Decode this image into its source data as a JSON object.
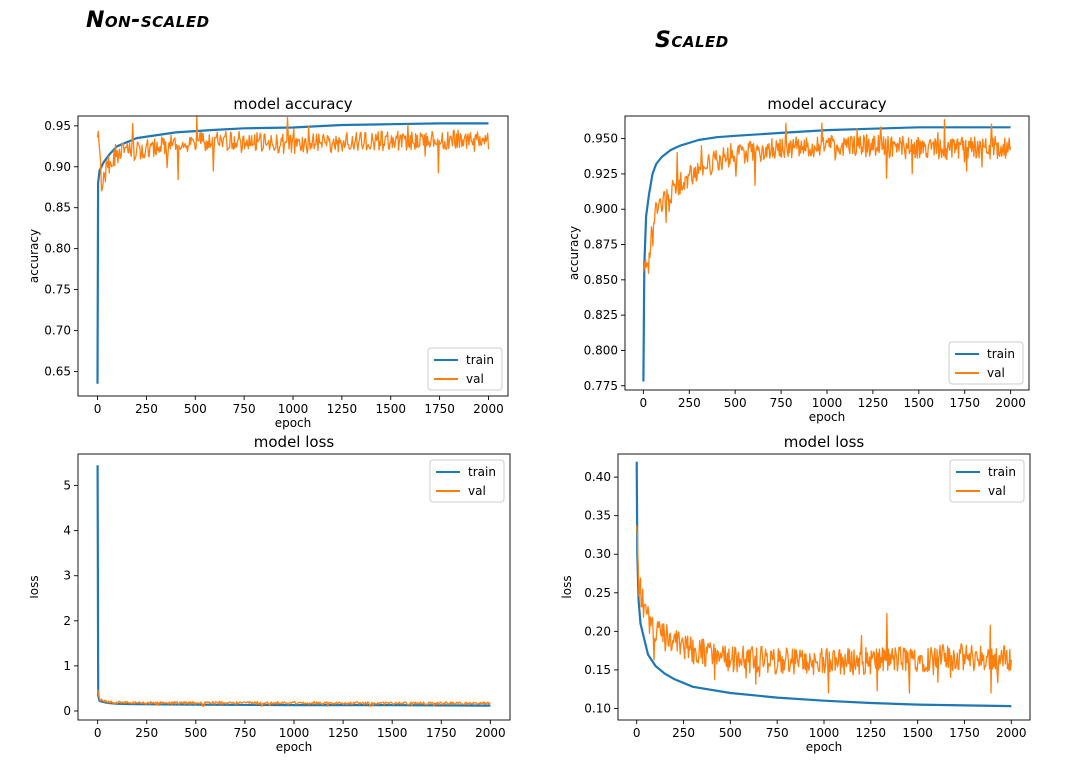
{
  "headings": {
    "left": "Non-scaled",
    "right": "Scaled"
  },
  "colors": {
    "train": "#1f77b4",
    "val": "#ff7f0e"
  },
  "chart_data": [
    {
      "id": "nonscaled-accuracy",
      "type": "line",
      "title": "model accuracy",
      "xlabel": "epoch",
      "ylabel": "accuracy",
      "xlim": [
        -100,
        2100
      ],
      "ylim": [
        0.62,
        0.962
      ],
      "xticks": [
        0,
        250,
        500,
        750,
        1000,
        1250,
        1500,
        1750,
        2000
      ],
      "yticks": [
        0.65,
        0.7,
        0.75,
        0.8,
        0.85,
        0.9,
        0.95
      ],
      "ytick_labels": [
        "0.65",
        "0.70",
        "0.75",
        "0.80",
        "0.85",
        "0.90",
        "0.95"
      ],
      "legend": "lower-right",
      "series": [
        {
          "name": "train",
          "x": [
            0,
            3,
            10,
            30,
            60,
            100,
            200,
            400,
            600,
            750,
            1000,
            1250,
            1500,
            1750,
            2000
          ],
          "y": [
            0.635,
            0.88,
            0.895,
            0.905,
            0.915,
            0.925,
            0.935,
            0.942,
            0.945,
            0.947,
            0.948,
            0.951,
            0.952,
            0.953,
            0.953
          ]
        },
        {
          "name": "val",
          "x": [
            0,
            20,
            50,
            100,
            200,
            300,
            400,
            500,
            600,
            700,
            800,
            900,
            1000,
            1250,
            1500,
            1750,
            2000
          ],
          "y": [
            0.945,
            0.88,
            0.9,
            0.915,
            0.92,
            0.925,
            0.928,
            0.93,
            0.932,
            0.932,
            0.93,
            0.928,
            0.928,
            0.93,
            0.932,
            0.933,
            0.933
          ],
          "noise": 0.012,
          "noise_min": 0.845
        }
      ]
    },
    {
      "id": "nonscaled-loss",
      "type": "line",
      "title": "model loss",
      "xlabel": "epoch",
      "ylabel": "loss",
      "xlim": [
        -100,
        2100
      ],
      "ylim": [
        -0.2,
        5.7
      ],
      "xticks": [
        0,
        250,
        500,
        750,
        1000,
        1250,
        1500,
        1750,
        2000
      ],
      "yticks": [
        0,
        1,
        2,
        3,
        4,
        5
      ],
      "ytick_labels": [
        "0",
        "1",
        "2",
        "3",
        "4",
        "5"
      ],
      "legend": "upper-right",
      "series": [
        {
          "name": "train",
          "x": [
            0,
            3,
            10,
            50,
            100,
            200,
            500,
            1000,
            1500,
            2000
          ],
          "y": [
            5.45,
            0.35,
            0.22,
            0.18,
            0.16,
            0.15,
            0.14,
            0.13,
            0.13,
            0.12
          ]
        },
        {
          "name": "val",
          "x": [
            0,
            10,
            50,
            100,
            200,
            500,
            1000,
            1500,
            2000
          ],
          "y": [
            0.45,
            0.25,
            0.2,
            0.19,
            0.18,
            0.18,
            0.18,
            0.17,
            0.17
          ],
          "noise": 0.03,
          "noise_min": 0.1
        }
      ]
    },
    {
      "id": "scaled-accuracy",
      "type": "line",
      "title": "model accuracy",
      "xlabel": "epoch",
      "ylabel": "accuracy",
      "xlim": [
        -100,
        2100
      ],
      "ylim": [
        0.772,
        0.966
      ],
      "xticks": [
        0,
        250,
        500,
        750,
        1000,
        1250,
        1500,
        1750,
        2000
      ],
      "yticks": [
        0.775,
        0.8,
        0.825,
        0.85,
        0.875,
        0.9,
        0.925,
        0.95
      ],
      "ytick_labels": [
        "0.775",
        "0.800",
        "0.825",
        "0.850",
        "0.875",
        "0.900",
        "0.925",
        "0.950"
      ],
      "legend": "lower-right",
      "series": [
        {
          "name": "train",
          "x": [
            0,
            5,
            15,
            30,
            50,
            70,
            100,
            150,
            200,
            300,
            400,
            500,
            750,
            1000,
            1250,
            1500,
            1750,
            2000
          ],
          "y": [
            0.778,
            0.86,
            0.895,
            0.91,
            0.925,
            0.932,
            0.937,
            0.942,
            0.945,
            0.949,
            0.951,
            0.952,
            0.954,
            0.956,
            0.957,
            0.958,
            0.958,
            0.958
          ]
        },
        {
          "name": "val",
          "x": [
            0,
            5,
            15,
            30,
            60,
            100,
            150,
            200,
            300,
            400,
            500,
            750,
            1000,
            1250,
            1500,
            1750,
            2000
          ],
          "y": [
            0.85,
            0.87,
            0.86,
            0.86,
            0.895,
            0.905,
            0.912,
            0.918,
            0.928,
            0.934,
            0.94,
            0.943,
            0.945,
            0.945,
            0.943,
            0.943,
            0.944
          ],
          "noise": 0.008,
          "noise_min": 0.845
        }
      ]
    },
    {
      "id": "scaled-loss",
      "type": "line",
      "title": "model loss",
      "xlabel": "epoch",
      "ylabel": "loss",
      "xlim": [
        -100,
        2100
      ],
      "ylim": [
        0.085,
        0.43
      ],
      "xticks": [
        0,
        250,
        500,
        750,
        1000,
        1250,
        1500,
        1750,
        2000
      ],
      "yticks": [
        0.1,
        0.15,
        0.2,
        0.25,
        0.3,
        0.35,
        0.4
      ],
      "ytick_labels": [
        "0.10",
        "0.15",
        "0.20",
        "0.25",
        "0.30",
        "0.35",
        "0.40"
      ],
      "legend": "upper-right",
      "series": [
        {
          "name": "train",
          "x": [
            0,
            3,
            10,
            20,
            40,
            60,
            100,
            150,
            200,
            300,
            500,
            750,
            1000,
            1250,
            1500,
            1750,
            2000
          ],
          "y": [
            0.42,
            0.3,
            0.24,
            0.21,
            0.19,
            0.17,
            0.155,
            0.145,
            0.138,
            0.128,
            0.12,
            0.114,
            0.11,
            0.107,
            0.105,
            0.104,
            0.103
          ]
        },
        {
          "name": "val",
          "x": [
            0,
            5,
            15,
            30,
            60,
            100,
            200,
            300,
            400,
            500,
            750,
            1000,
            1250,
            1500,
            1750,
            2000
          ],
          "y": [
            0.33,
            0.27,
            0.26,
            0.24,
            0.215,
            0.2,
            0.185,
            0.175,
            0.17,
            0.165,
            0.162,
            0.16,
            0.162,
            0.165,
            0.166,
            0.165
          ],
          "noise": 0.018,
          "noise_min": 0.12
        }
      ]
    }
  ]
}
